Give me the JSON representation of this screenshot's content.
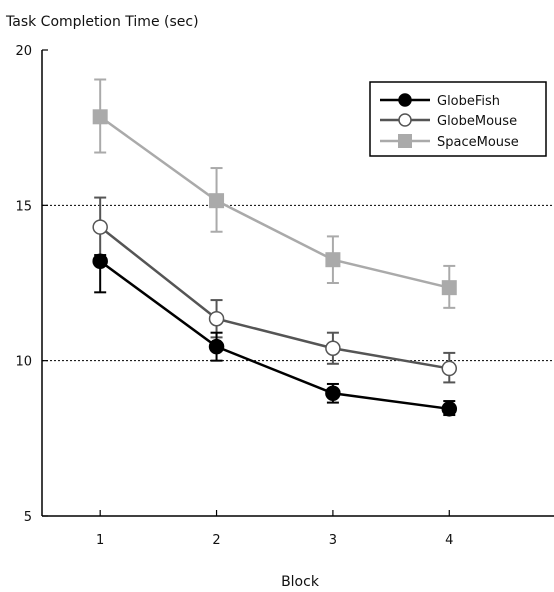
{
  "chart_data": {
    "type": "line",
    "ylabel": "Task Completion Time (sec)",
    "xlabel": "Block",
    "ylim": [
      5,
      20
    ],
    "yticks": [
      "20",
      "15",
      "10",
      "5"
    ],
    "xticks": [
      "1",
      "2",
      "3",
      "4"
    ],
    "x": [
      1,
      2,
      3,
      4
    ],
    "xlim": [
      0.5,
      4.9
    ],
    "reference_lines": [
      15,
      10
    ],
    "legend_position": "top-right",
    "series": [
      {
        "name": "GlobeFish",
        "marker": "filled-circle",
        "color": "#000000",
        "values": [
          13.2,
          10.45,
          8.95,
          8.45
        ],
        "error_low": [
          12.2,
          10.0,
          8.65,
          8.25
        ],
        "error_high": [
          13.4,
          10.9,
          9.25,
          8.7
        ]
      },
      {
        "name": "GlobeMouse",
        "marker": "open-circle",
        "color": "#555555",
        "values": [
          14.3,
          11.35,
          10.4,
          9.75
        ],
        "error_low": [
          13.3,
          10.75,
          9.9,
          9.3
        ],
        "error_high": [
          15.25,
          11.95,
          10.9,
          10.25
        ]
      },
      {
        "name": "SpaceMouse",
        "marker": "filled-square",
        "color": "#aaaaaa",
        "values": [
          17.85,
          15.15,
          13.25,
          12.35
        ],
        "error_low": [
          16.7,
          14.15,
          12.5,
          11.7
        ],
        "error_high": [
          19.05,
          16.2,
          14.0,
          13.05
        ]
      }
    ]
  }
}
